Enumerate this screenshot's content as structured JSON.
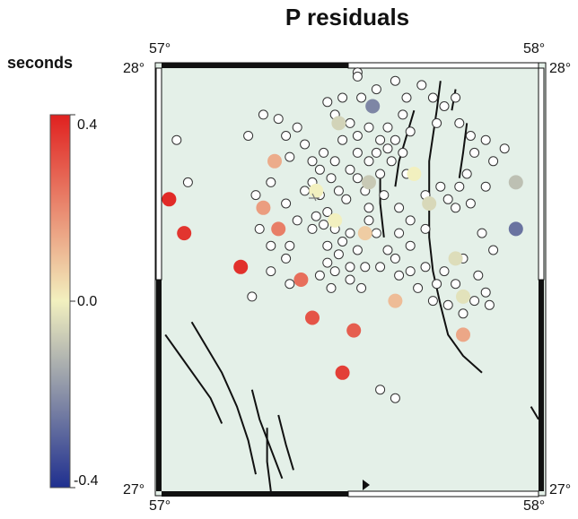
{
  "title": "P residuals",
  "colorbar": {
    "label": "seconds",
    "ticks": [
      "0.4",
      "0.0",
      "-0.4"
    ],
    "range": [
      -0.4,
      0.4
    ],
    "colors": {
      "negative_max": "#1f2f8f",
      "neutral": "#f2f0bf",
      "positive_max": "#e0201f"
    }
  },
  "map": {
    "background_color": "#e4f0e8",
    "frame_color": "#111111",
    "lon_labels": {
      "left_top": "57°",
      "right_top": "58°",
      "left_bottom": "57°",
      "right_bottom": "58°"
    },
    "lat_labels": {
      "top_left": "28°",
      "top_right": "28°",
      "bottom_left": "27°",
      "bottom_right": "27°"
    },
    "stations": [
      {
        "lon": 57.02,
        "lat": 27.69,
        "residual": 0.38
      },
      {
        "lon": 57.06,
        "lat": 27.61,
        "residual": 0.36
      },
      {
        "lon": 57.21,
        "lat": 27.53,
        "residual": 0.37
      },
      {
        "lon": 57.27,
        "lat": 27.67,
        "residual": 0.16
      },
      {
        "lon": 57.31,
        "lat": 27.62,
        "residual": 0.22
      },
      {
        "lon": 57.3,
        "lat": 27.78,
        "residual": 0.13
      },
      {
        "lon": 57.37,
        "lat": 27.5,
        "residual": 0.25
      },
      {
        "lon": 57.4,
        "lat": 27.41,
        "residual": 0.3
      },
      {
        "lon": 57.48,
        "lat": 27.28,
        "residual": 0.34
      },
      {
        "lon": 57.51,
        "lat": 27.38,
        "residual": 0.28
      },
      {
        "lon": 57.54,
        "lat": 27.61,
        "residual": 0.07
      },
      {
        "lon": 57.62,
        "lat": 27.45,
        "residual": 0.1
      },
      {
        "lon": 57.8,
        "lat": 27.37,
        "residual": 0.14
      },
      {
        "lon": 57.46,
        "lat": 27.64,
        "residual": 0.0
      },
      {
        "lon": 57.41,
        "lat": 27.71,
        "residual": 0.0
      },
      {
        "lon": 57.67,
        "lat": 27.75,
        "residual": 0.0
      },
      {
        "lon": 57.47,
        "lat": 27.87,
        "residual": -0.06
      },
      {
        "lon": 57.56,
        "lat": 27.91,
        "residual": -0.22
      },
      {
        "lon": 57.55,
        "lat": 27.73,
        "residual": -0.08
      },
      {
        "lon": 57.71,
        "lat": 27.68,
        "residual": -0.05
      },
      {
        "lon": 57.78,
        "lat": 27.55,
        "residual": -0.04
      },
      {
        "lon": 57.8,
        "lat": 27.46,
        "residual": -0.03
      },
      {
        "lon": 57.94,
        "lat": 27.73,
        "residual": -0.1
      },
      {
        "lon": 57.94,
        "lat": 27.62,
        "residual": -0.26
      }
    ],
    "events": [
      [
        57.52,
        27.99
      ],
      [
        57.53,
        27.93
      ],
      [
        57.57,
        27.95
      ],
      [
        57.62,
        27.97
      ],
      [
        57.65,
        27.93
      ],
      [
        57.64,
        27.89
      ],
      [
        57.6,
        27.86
      ],
      [
        57.62,
        27.83
      ],
      [
        57.66,
        27.85
      ],
      [
        57.69,
        27.96
      ],
      [
        57.72,
        27.93
      ],
      [
        57.75,
        27.91
      ],
      [
        57.78,
        27.93
      ],
      [
        57.79,
        27.87
      ],
      [
        57.82,
        27.84
      ],
      [
        57.73,
        27.87
      ],
      [
        57.44,
        27.92
      ],
      [
        57.48,
        27.93
      ],
      [
        57.46,
        27.89
      ],
      [
        57.5,
        27.87
      ],
      [
        57.52,
        27.84
      ],
      [
        57.55,
        27.86
      ],
      [
        57.58,
        27.83
      ],
      [
        57.6,
        27.81
      ],
      [
        57.57,
        27.8
      ],
      [
        57.61,
        27.78
      ],
      [
        57.64,
        27.8
      ],
      [
        57.55,
        27.78
      ],
      [
        57.52,
        27.8
      ],
      [
        57.5,
        27.76
      ],
      [
        57.46,
        27.78
      ],
      [
        57.43,
        27.8
      ],
      [
        57.4,
        27.78
      ],
      [
        57.42,
        27.76
      ],
      [
        57.45,
        27.74
      ],
      [
        57.4,
        27.73
      ],
      [
        57.38,
        27.71
      ],
      [
        57.42,
        27.7
      ],
      [
        57.47,
        27.71
      ],
      [
        57.49,
        27.69
      ],
      [
        57.44,
        27.66
      ],
      [
        57.41,
        27.65
      ],
      [
        57.43,
        27.63
      ],
      [
        57.4,
        27.62
      ],
      [
        57.46,
        27.62
      ],
      [
        57.48,
        27.59
      ],
      [
        57.52,
        27.57
      ],
      [
        57.47,
        27.56
      ],
      [
        57.44,
        27.54
      ],
      [
        57.42,
        27.51
      ],
      [
        57.46,
        27.52
      ],
      [
        57.5,
        27.5
      ],
      [
        57.53,
        27.48
      ],
      [
        57.54,
        27.53
      ],
      [
        57.58,
        27.53
      ],
      [
        57.6,
        27.57
      ],
      [
        57.63,
        27.61
      ],
      [
        57.66,
        27.64
      ],
      [
        57.7,
        27.62
      ],
      [
        57.66,
        27.58
      ],
      [
        57.62,
        27.55
      ],
      [
        57.66,
        27.52
      ],
      [
        57.7,
        27.53
      ],
      [
        57.73,
        27.49
      ],
      [
        57.75,
        27.52
      ],
      [
        57.78,
        27.49
      ],
      [
        57.8,
        27.55
      ],
      [
        57.84,
        27.51
      ],
      [
        57.86,
        27.47
      ],
      [
        57.87,
        27.44
      ],
      [
        57.83,
        27.45
      ],
      [
        57.8,
        27.42
      ],
      [
        57.76,
        27.44
      ],
      [
        57.72,
        27.45
      ],
      [
        57.7,
        27.7
      ],
      [
        57.74,
        27.72
      ],
      [
        57.76,
        27.69
      ],
      [
        57.78,
        27.67
      ],
      [
        57.79,
        27.72
      ],
      [
        57.81,
        27.75
      ],
      [
        57.83,
        27.8
      ],
      [
        57.86,
        27.83
      ],
      [
        57.88,
        27.78
      ],
      [
        57.91,
        27.81
      ],
      [
        57.86,
        27.72
      ],
      [
        57.82,
        27.68
      ],
      [
        57.85,
        27.61
      ],
      [
        57.88,
        27.57
      ],
      [
        57.07,
        27.73
      ],
      [
        57.04,
        27.83
      ],
      [
        57.27,
        27.89
      ],
      [
        57.31,
        27.88
      ],
      [
        57.23,
        27.84
      ],
      [
        57.33,
        27.84
      ],
      [
        57.29,
        27.73
      ],
      [
        57.25,
        27.7
      ],
      [
        57.33,
        27.68
      ],
      [
        57.26,
        27.62
      ],
      [
        57.29,
        27.58
      ],
      [
        57.34,
        27.58
      ],
      [
        57.36,
        27.64
      ],
      [
        57.33,
        27.55
      ],
      [
        57.29,
        27.52
      ],
      [
        57.24,
        27.46
      ],
      [
        57.34,
        27.49
      ],
      [
        57.44,
        27.58
      ],
      [
        57.5,
        27.61
      ],
      [
        57.55,
        27.67
      ],
      [
        57.59,
        27.7
      ],
      [
        57.54,
        27.71
      ],
      [
        57.63,
        27.67
      ],
      [
        57.65,
        27.75
      ],
      [
        57.58,
        27.75
      ],
      [
        57.55,
        27.64
      ],
      [
        57.38,
        27.82
      ],
      [
        57.36,
        27.86
      ],
      [
        57.34,
        27.79
      ],
      [
        57.48,
        27.83
      ],
      [
        57.52,
        27.74
      ],
      [
        57.57,
        27.61
      ],
      [
        57.63,
        27.51
      ],
      [
        57.68,
        27.48
      ],
      [
        57.52,
        27.98
      ],
      [
        57.5,
        27.53
      ],
      [
        57.45,
        27.48
      ],
      [
        57.58,
        27.24
      ],
      [
        57.62,
        27.22
      ]
    ],
    "faults": [
      [
        [
          57.74,
          27.97
        ],
        [
          57.73,
          27.9
        ],
        [
          57.72,
          27.84
        ],
        [
          57.71,
          27.78
        ],
        [
          57.71,
          27.7
        ],
        [
          57.71,
          27.6
        ],
        [
          57.72,
          27.52
        ],
        [
          57.74,
          27.44
        ],
        [
          57.76,
          27.37
        ],
        [
          57.8,
          27.32
        ],
        [
          57.85,
          27.28
        ]
      ],
      [
        [
          57.81,
          27.87
        ],
        [
          57.8,
          27.8
        ],
        [
          57.79,
          27.74
        ]
      ],
      [
        [
          57.78,
          27.95
        ],
        [
          57.77,
          27.9
        ]
      ],
      [
        [
          57.67,
          27.9
        ],
        [
          57.65,
          27.84
        ],
        [
          57.63,
          27.78
        ],
        [
          57.62,
          27.72
        ]
      ],
      [
        [
          57.58,
          27.76
        ],
        [
          57.58,
          27.68
        ],
        [
          57.59,
          27.6
        ]
      ],
      [
        [
          57.01,
          27.37
        ],
        [
          57.05,
          27.32
        ],
        [
          57.09,
          27.27
        ],
        [
          57.13,
          27.22
        ],
        [
          57.16,
          27.16
        ]
      ],
      [
        [
          57.08,
          27.4
        ],
        [
          57.12,
          27.34
        ],
        [
          57.16,
          27.28
        ],
        [
          57.2,
          27.2
        ],
        [
          57.23,
          27.12
        ],
        [
          57.25,
          27.04
        ]
      ],
      [
        [
          57.24,
          27.24
        ],
        [
          57.26,
          27.17
        ],
        [
          57.29,
          27.1
        ],
        [
          57.32,
          27.03
        ]
      ],
      [
        [
          57.31,
          27.18
        ],
        [
          57.33,
          27.11
        ],
        [
          57.35,
          27.05
        ]
      ],
      [
        [
          57.28,
          27.15
        ],
        [
          57.28,
          27.07
        ],
        [
          57.29,
          27.0
        ]
      ],
      [
        [
          57.98,
          27.2
        ],
        [
          58.0,
          27.17
        ]
      ]
    ]
  }
}
